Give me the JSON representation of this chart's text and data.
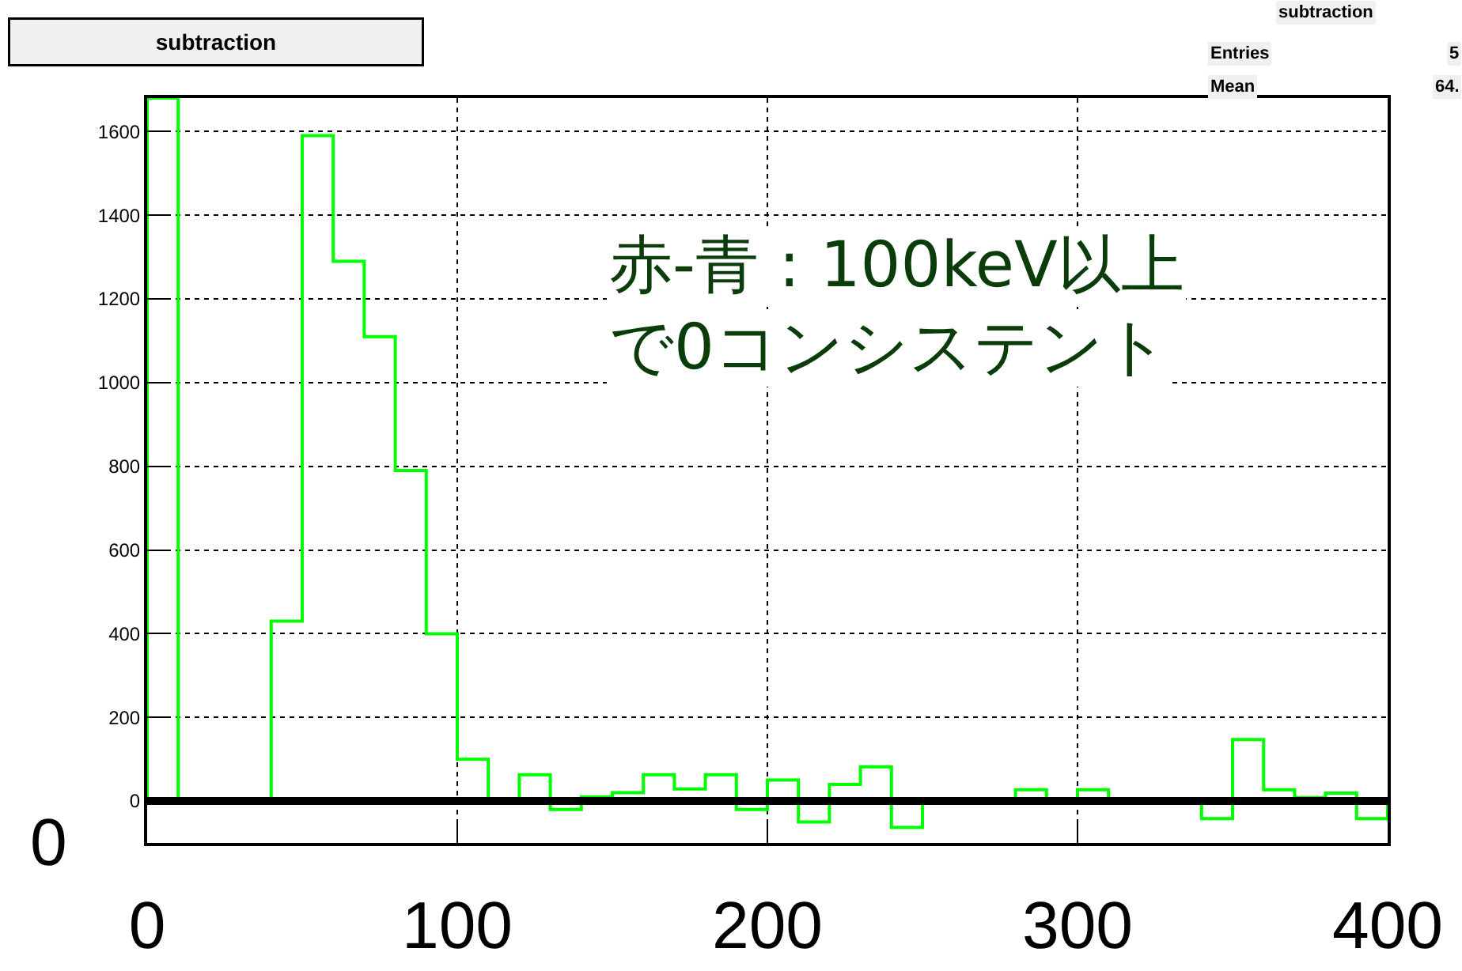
{
  "chart_data": {
    "type": "histogram",
    "title": "subtraction",
    "bins": [
      0,
      10,
      20,
      30,
      40,
      50,
      60,
      70,
      80,
      90,
      100,
      110,
      120,
      130,
      140,
      150,
      160,
      170,
      180,
      190,
      200,
      210,
      220,
      230,
      240,
      250,
      260,
      270,
      280,
      290,
      300,
      310,
      320,
      330,
      340,
      350,
      360,
      370,
      380,
      390,
      400
    ],
    "values": [
      1680,
      5,
      5,
      5,
      430,
      1590,
      1290,
      1110,
      790,
      400,
      100,
      0,
      63,
      -20,
      10,
      20,
      63,
      29,
      63,
      -20,
      50,
      -50,
      40,
      82,
      -63,
      0,
      0,
      5,
      27,
      0,
      27,
      0,
      0,
      5,
      -42,
      147,
      27,
      8,
      19,
      -42
    ],
    "color": "#00ff00",
    "xlim": [
      0,
      400
    ],
    "xticks": [
      0,
      100,
      200,
      300,
      400
    ],
    "ylim": [
      -100,
      1680
    ],
    "yticks": [
      0,
      200,
      400,
      600,
      800,
      1000,
      1200,
      1400,
      1600
    ],
    "grid": true,
    "ref_lines": [
      {
        "axis": "y",
        "value": 0,
        "label": "0",
        "color": "#000000"
      }
    ],
    "annotations": [
      "subtraction",
      "Entries",
      "5",
      "Mean",
      "64.",
      "赤-青 : 100keV以上",
      "で0コンシステント"
    ]
  }
}
